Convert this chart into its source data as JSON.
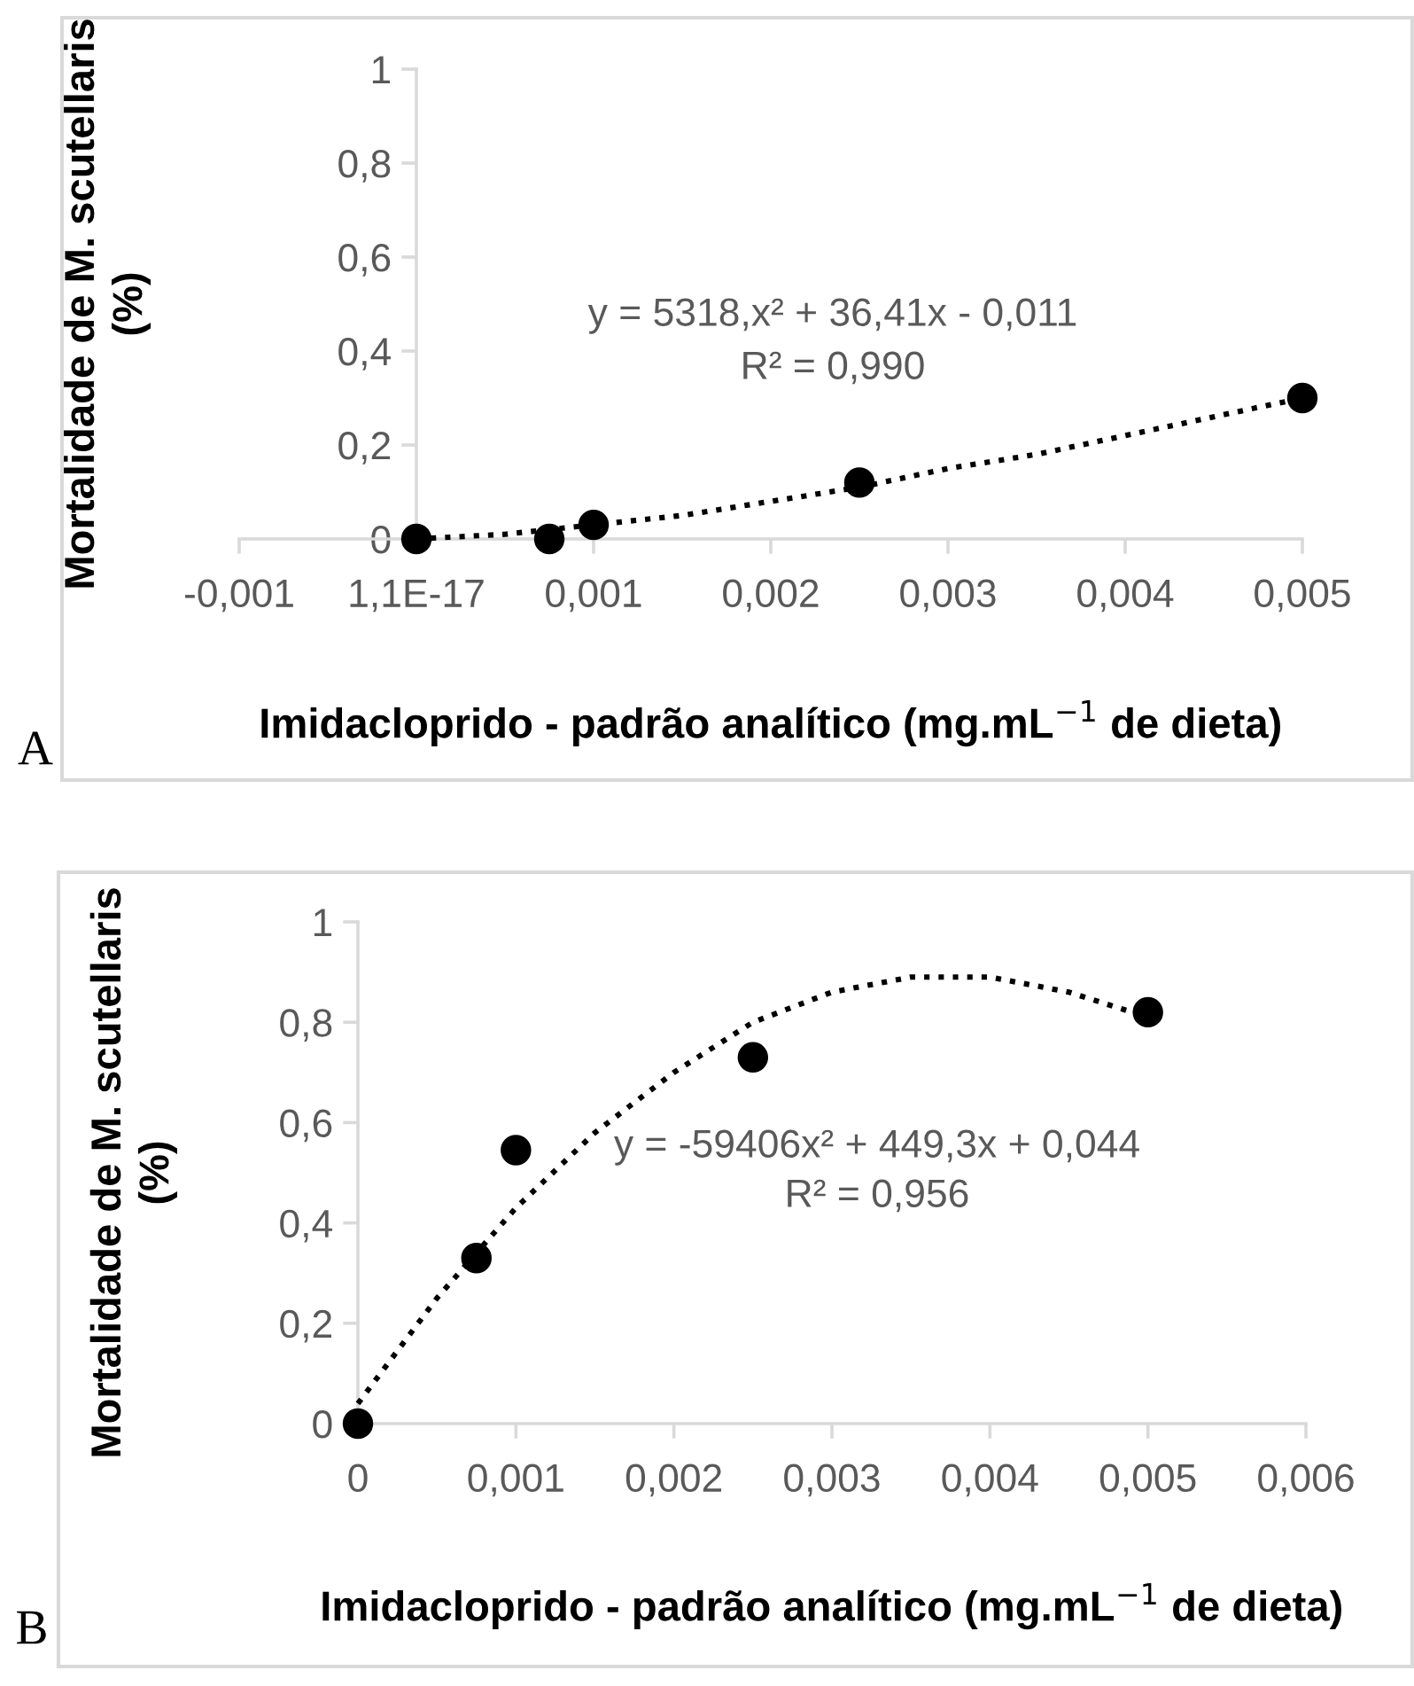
{
  "chart_data": [
    {
      "type": "scatter",
      "xlabel": "Imidacloprido - padrão analítico (mg.mL$^{−1}$ de dieta)",
      "ylabel": "Mortalidade de M. scutellaris\n(%)",
      "annotations": [
        "y = 5318,x² + 36,41x - 0,011",
        "R² = 0,990",
        "A"
      ],
      "series": [
        {
          "color": "#000000",
          "marker": "circle",
          "x": [
            0,
            0.00075,
            0.001,
            0.0025,
            0.005
          ],
          "values": [
            0,
            0,
            0.03,
            0.12,
            0.3
          ]
        },
        {
          "type": "line",
          "color": "#000000",
          "line_style": "dotted",
          "marker": "none",
          "x": [
            0,
            0.0005,
            0.001,
            0.0015,
            0.002,
            0.0025,
            0.003,
            0.0035,
            0.004,
            0.0045,
            0.005
          ],
          "values": [
            0,
            0.01,
            0.03,
            0.05,
            0.08,
            0.11,
            0.15,
            0.18,
            0.22,
            0.26,
            0.3
          ]
        }
      ],
      "xlim": [
        -0.001,
        0.005
      ],
      "ylim": [
        0,
        1
      ],
      "xticks": [
        {
          "value": -0.001,
          "label": "-0,001"
        },
        {
          "value": 0,
          "label": "1,1E-17"
        },
        {
          "value": 0.001,
          "label": "0,001"
        },
        {
          "value": 0.002,
          "label": "0,002"
        },
        {
          "value": 0.003,
          "label": "0,003"
        },
        {
          "value": 0.004,
          "label": "0,004"
        },
        {
          "value": 0.005,
          "label": "0,005"
        }
      ],
      "yticks": [
        0,
        {
          "value": 0.2,
          "label": "0,2"
        },
        {
          "value": 0.4,
          "label": "0,4"
        },
        {
          "value": 0.6,
          "label": "0,6"
        },
        {
          "value": 0.8,
          "label": "0,8"
        },
        1
      ],
      "grid": false,
      "legend": false
    },
    {
      "type": "scatter",
      "xlabel": "Imidacloprido - padrão analítico (mg.mL$^{−1}$ de dieta)",
      "ylabel": "Mortalidade de M. scutellaris\n(%)",
      "annotations": [
        "y = -59406x² + 449,3x + 0,044",
        "R² = 0,956",
        "B"
      ],
      "series": [
        {
          "color": "#000000",
          "marker": "circle",
          "x": [
            0,
            0.00075,
            0.001,
            0.0025,
            0.005
          ],
          "values": [
            0,
            0.33,
            0.545,
            0.73,
            0.82
          ]
        },
        {
          "type": "line",
          "color": "#000000",
          "line_style": "dotted",
          "marker": "none",
          "x": [
            0,
            0.0005,
            0.001,
            0.0015,
            0.002,
            0.0025,
            0.003,
            0.0035,
            0.004,
            0.0045,
            0.005
          ],
          "values": [
            0.04,
            0.25,
            0.43,
            0.58,
            0.7,
            0.8,
            0.86,
            0.89,
            0.89,
            0.86,
            0.81
          ]
        }
      ],
      "xlim": [
        0,
        0.006
      ],
      "ylim": [
        0,
        1
      ],
      "xticks": [
        0,
        {
          "value": 0.001,
          "label": "0,001"
        },
        {
          "value": 0.002,
          "label": "0,002"
        },
        {
          "value": 0.003,
          "label": "0,003"
        },
        {
          "value": 0.004,
          "label": "0,004"
        },
        {
          "value": 0.005,
          "label": "0,005"
        },
        {
          "value": 0.006,
          "label": "0,006"
        }
      ],
      "yticks": [
        0,
        {
          "value": 0.2,
          "label": "0,2"
        },
        {
          "value": 0.4,
          "label": "0,4"
        },
        {
          "value": 0.6,
          "label": "0,6"
        },
        {
          "value": 0.8,
          "label": "0,8"
        },
        1
      ],
      "grid": false,
      "legend": false
    }
  ]
}
